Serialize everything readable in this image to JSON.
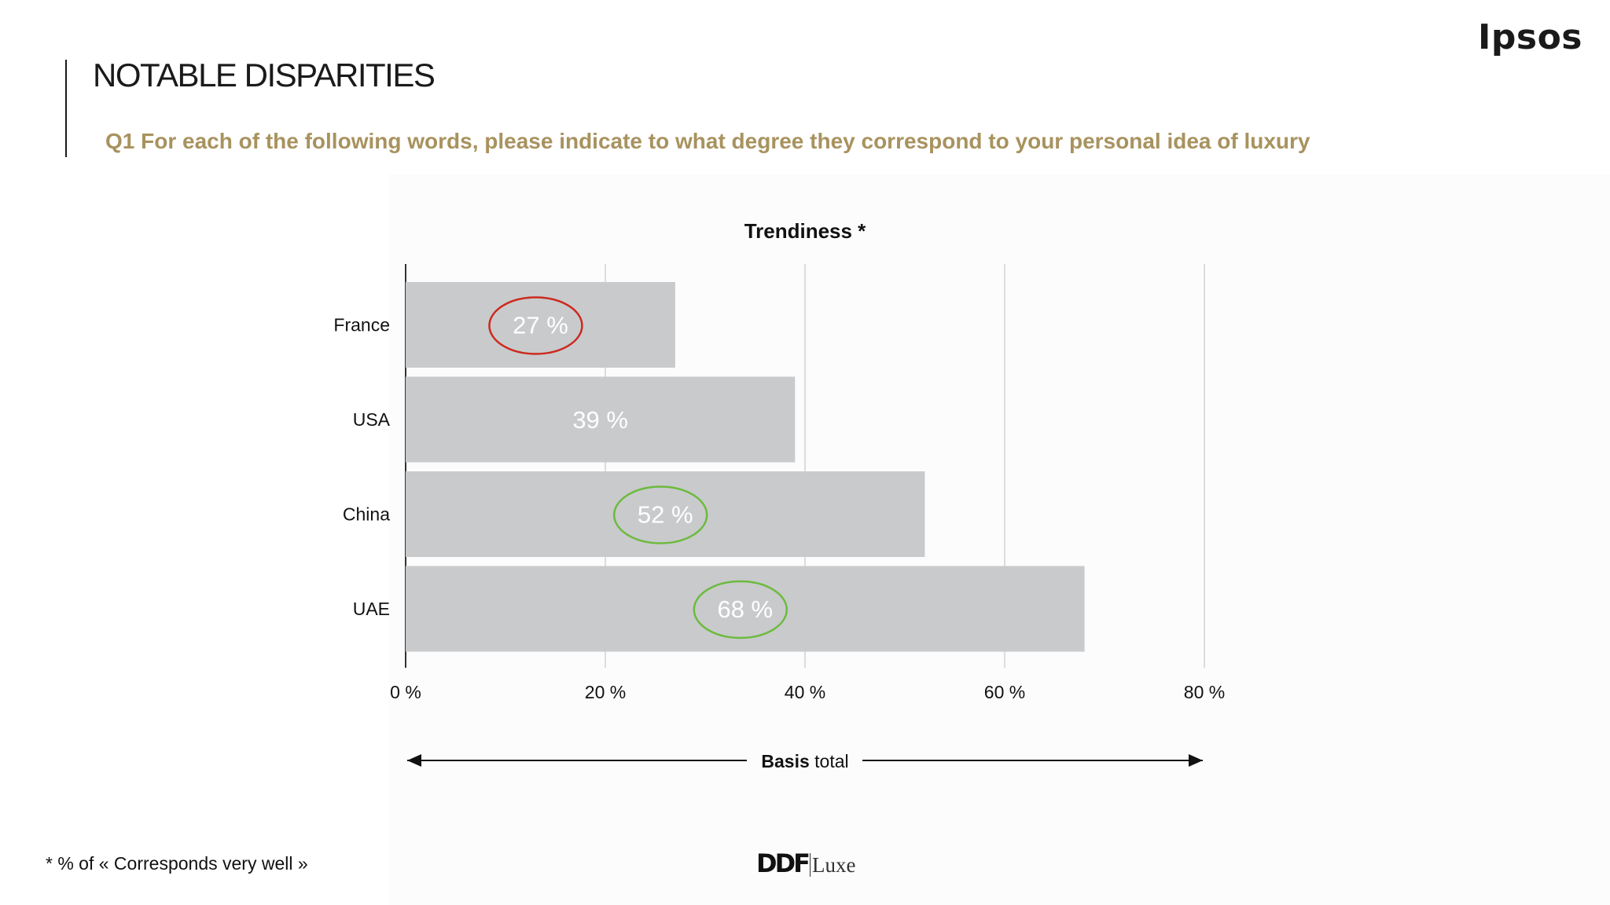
{
  "header": {
    "brand": "Ipsos",
    "title": "NOTABLE DISPARITIES",
    "question": "Q1 For each of the following words, please indicate to what degree they correspond to your personal idea of luxury"
  },
  "chart_data": {
    "type": "bar",
    "orientation": "horizontal",
    "title": "Trendiness *",
    "categories": [
      "France",
      "USA",
      "China",
      "UAE"
    ],
    "values": [
      27,
      39,
      52,
      68
    ],
    "value_labels": [
      "27 %",
      "39 %",
      "52 %",
      "68 %"
    ],
    "xlim": [
      0,
      80
    ],
    "x_ticks": [
      0,
      20,
      40,
      60,
      80
    ],
    "x_tick_labels": [
      "0 %",
      "20 %",
      "40 %",
      "60 %",
      "80 %"
    ],
    "grid": true,
    "bar_color": "#c9cacc",
    "highlights": [
      {
        "category": "France",
        "color": "#cc2a1e"
      },
      {
        "category": "China",
        "color": "#6cbb3c"
      },
      {
        "category": "UAE",
        "color": "#6cbb3c"
      }
    ],
    "basis": {
      "bold": "Basis",
      "rest": " total"
    }
  },
  "footer": {
    "footnote": "* % of « Corresponds very well »",
    "logo_main": "DDF",
    "logo_sub": "Luxe"
  }
}
